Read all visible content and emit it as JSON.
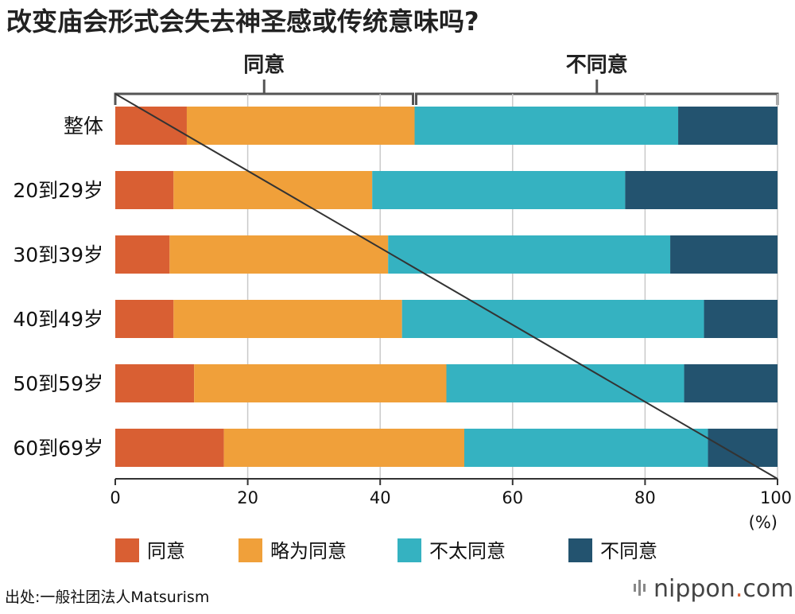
{
  "chart_data": {
    "type": "bar",
    "orientation": "horizontal",
    "stacked": true,
    "title": "改变庙会形式会失去神圣感或传统意味吗?",
    "group_labels": {
      "agree": "同意",
      "disagree": "不同意"
    },
    "categories": [
      "整体",
      "20到29岁",
      "30到39岁",
      "40到49岁",
      "50到59岁",
      "60到69岁"
    ],
    "series": [
      {
        "name": "同意",
        "color": "#d95f33",
        "values": [
          10.8,
          8.8,
          8.2,
          8.8,
          11.9,
          16.4
        ]
      },
      {
        "name": "略为同意",
        "color": "#f0a03a",
        "values": [
          34.4,
          30.0,
          33.0,
          34.5,
          38.1,
          36.3
        ]
      },
      {
        "name": "不太同意",
        "color": "#35b2c1",
        "values": [
          39.8,
          38.2,
          42.6,
          45.6,
          35.9,
          36.8
        ]
      },
      {
        "name": "不同意",
        "color": "#23536f",
        "values": [
          15.0,
          23.0,
          16.2,
          11.1,
          14.1,
          10.5
        ]
      }
    ],
    "xlim": [
      0,
      100
    ],
    "xticks": [
      "0",
      "20",
      "40",
      "60",
      "80",
      "100"
    ],
    "xunit": "(%)",
    "grid": true,
    "legend_position": "bottom"
  },
  "footer": {
    "source": "出处:一般社团法人Matsurism",
    "brand_main": "nippon",
    "brand_dot": ".",
    "brand_tld": "com"
  }
}
